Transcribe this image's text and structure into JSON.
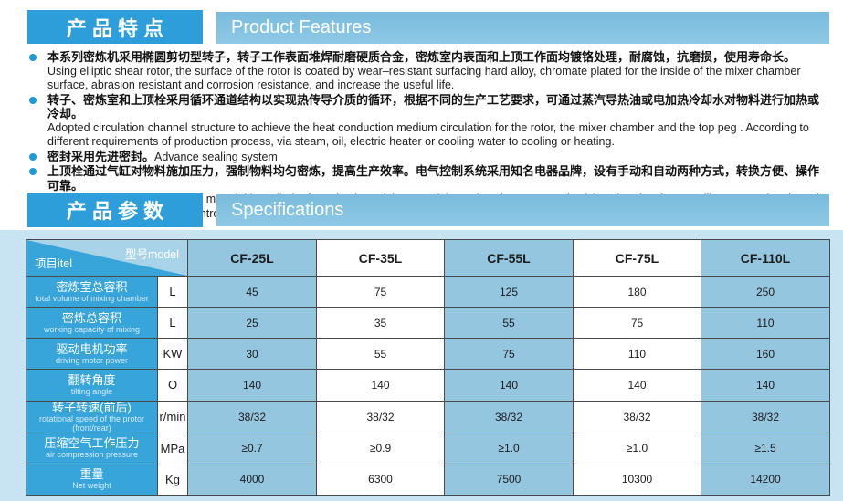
{
  "colors": {
    "banner_dark_blue": "#2d9ed9",
    "banner_light_blue": "#85c2e2",
    "bullet_dot_blue": "#1d9bd7",
    "panel_background": "#c8e3f2",
    "table_label_blue": "#38a5da",
    "table_column_blue": "#95c6df",
    "corner_light_blue": "#a8d3e8"
  },
  "sections": {
    "features": {
      "title_cn": "产 品 特 点",
      "title_en": "Product Features",
      "bullets": [
        {
          "cn": "本系列密炼机采用椭圆剪切型转子，转子工作表面堆焊耐磨硬质合金，密炼室内表面和上顶工作面均镀铬处理，耐腐蚀，抗磨损，使用寿命长。",
          "en": "Using elliptic shear rotor, the surface of the rotor is coated by wear–resistant surfacing hard alloy, chromate plated for the inside of the mixer chamber surface, abrasion resistant and corrosion resistance, and increase the useful life."
        },
        {
          "cn": "转子、密炼室和上顶栓采用循环通道结构以实现热传导介质的循环，根据不同的生产工艺要求，可通过蒸汽导热油或电加热冷却水对物料进行加热或冷却。",
          "en": "Adopted circulation channel structure to achieve the heat conduction medium circulation for the rotor, the mixer chamber and the top peg . According to different requirements of production process, via steam, oil, electric heater or cooling water to cooling or heating."
        },
        {
          "cn": "密封采用先进密封。",
          "en": "Advance sealing system"
        },
        {
          "cn": "上顶栓通过气缸对物料施加压力，强制物料均匀密炼，提高生产效率。电气控制系统采用知名电器品牌，设有手动和自动两种方式，转换方便、操作可靠。",
          "en": "the top peg put pressure to the material by cylinder,forced to knead the material evenly to increase productivity. The electric controlling system is adopted the famous brand in China, controlled by manual or automatic, easy to shift and operate reliably."
        }
      ]
    },
    "specs": {
      "title_cn": "产 品 参 数",
      "title_en": "Specifications",
      "table": {
        "corner": {
          "top": "型号model",
          "bottom": "项目itel"
        },
        "models": [
          "CF-25L",
          "CF-35L",
          "CF-55L",
          "CF-75L",
          "CF-110L"
        ],
        "rows": [
          {
            "cn": "密炼室总容积",
            "en": "total volume of mixing chamber",
            "unit": "L",
            "values": [
              "45",
              "75",
              "125",
              "180",
              "250"
            ]
          },
          {
            "cn": "密炼总容积",
            "en": "working capacity of mixing",
            "unit": "L",
            "values": [
              "25",
              "35",
              "55",
              "75",
              "110"
            ]
          },
          {
            "cn": "驱动电机功率",
            "en": "driving motor power",
            "unit": "KW",
            "values": [
              "30",
              "55",
              "75",
              "110",
              "160"
            ]
          },
          {
            "cn": "翻转角度",
            "en": "tilting angle",
            "unit": "O",
            "values": [
              "140",
              "140",
              "140",
              "140",
              "140"
            ]
          },
          {
            "cn": "转子转速(前后)",
            "en": "rotational speed of the protor (front/rear)",
            "unit": "r/min",
            "values": [
              "38/32",
              "38/32",
              "38/32",
              "38/32",
              "38/32"
            ]
          },
          {
            "cn": "压缩空气工作压力",
            "en": "air compression pressure",
            "unit": "MPa",
            "values": [
              "≥0.7",
              "≥0.9",
              "≥1.0",
              "≥1.0",
              "≥1.5"
            ]
          },
          {
            "cn": "重量",
            "en": "Net weight",
            "unit": "Kg",
            "values": [
              "4000",
              "6300",
              "7500",
              "10300",
              "14200"
            ]
          }
        ]
      }
    }
  }
}
